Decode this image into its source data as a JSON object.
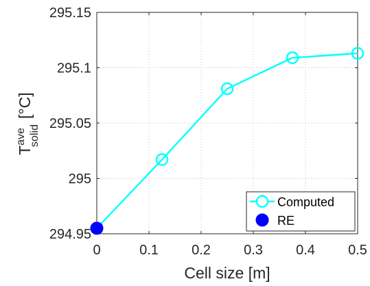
{
  "chart_data": {
    "type": "line",
    "xlabel": "Cell size [m]",
    "ylabel": {
      "base": "T",
      "sup": "ave",
      "sub": "solid",
      "unit": "[°C]"
    },
    "xlim": [
      0,
      0.5
    ],
    "ylim": [
      294.95,
      295.15
    ],
    "x_ticks": [
      0,
      0.1,
      0.2,
      0.3,
      0.4,
      0.5
    ],
    "x_tick_labels": [
      "0",
      "0.1",
      "0.2",
      "0.3",
      "0.4",
      "0.5"
    ],
    "y_ticks": [
      294.95,
      295,
      295.05,
      295.1,
      295.15
    ],
    "y_tick_labels": [
      "294.95",
      "295",
      "295.05",
      "295.1",
      "295.15"
    ],
    "grid": true,
    "legend_position": "bottom-right",
    "series": [
      {
        "name": "Computed",
        "color": "#00ffff",
        "marker": "open-circle",
        "points": [
          {
            "x": 0,
            "y": 294.955
          },
          {
            "x": 0.125,
            "y": 295.017
          },
          {
            "x": 0.25,
            "y": 295.081
          },
          {
            "x": 0.375,
            "y": 295.109
          },
          {
            "x": 0.5,
            "y": 295.113
          }
        ]
      },
      {
        "name": "RE",
        "color": "#0000ff",
        "marker": "filled-circle",
        "points": [
          {
            "x": 0,
            "y": 294.955
          }
        ]
      }
    ]
  }
}
